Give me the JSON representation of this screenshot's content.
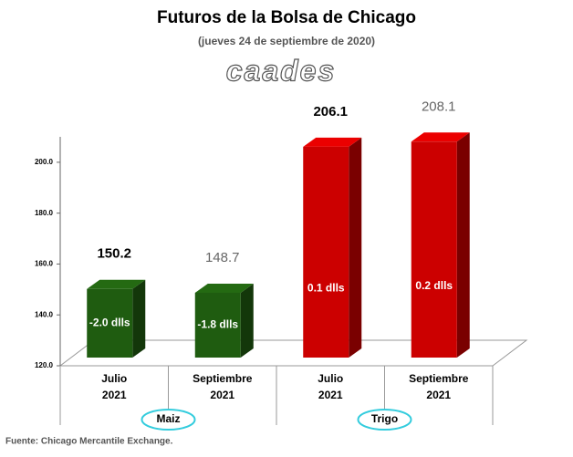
{
  "chart_data": {
    "type": "bar3d",
    "title": "Futuros de la Bolsa de Chicago",
    "subtitle": "(jueves 24 de septiembre de 2020)",
    "logo": "caades",
    "source": "Fuente: Chicago Mercantile Exchange.",
    "categories": [
      [
        "Julio",
        "2021"
      ],
      [
        "Septiembre",
        "2021"
      ],
      [
        "Julio",
        "2021"
      ],
      [
        "Septiembre",
        "2021"
      ]
    ],
    "groups": [
      {
        "name": "Maiz",
        "span": [
          0,
          1
        ]
      },
      {
        "name": "Trigo",
        "span": [
          2,
          3
        ]
      }
    ],
    "values": [
      150.2,
      148.7,
      206.1,
      208.1
    ],
    "change_labels": [
      "-2.0 dlls",
      "-1.8 dlls",
      "0.1 dlls",
      "0.2 dlls"
    ],
    "colors": [
      "#1f5c10",
      "#1f5c10",
      "#cc0000",
      "#cc0000"
    ],
    "label_colors": [
      "#000000",
      "#666666",
      "#000000",
      "#666666"
    ],
    "ylim": [
      120,
      210
    ],
    "yticks": [
      {
        "value": 120,
        "label": "120.0"
      },
      {
        "value": 140,
        "label": "140.0"
      },
      {
        "value": 160,
        "label": "160.0"
      },
      {
        "value": 180,
        "label": "180.0"
      },
      {
        "value": 200,
        "label": "200.0"
      }
    ]
  }
}
